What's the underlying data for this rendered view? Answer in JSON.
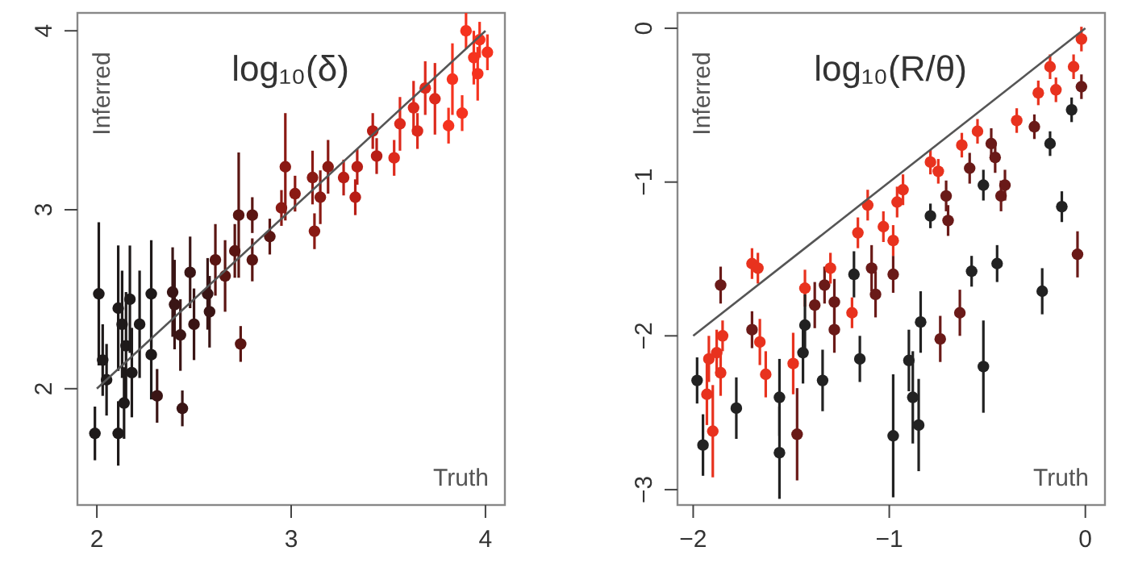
{
  "chart_data": [
    {
      "type": "scatter",
      "title": "log₁₀(δ)",
      "xlabel": "Truth",
      "ylabel": "Inferred",
      "xlim": [
        1.9,
        4.1
      ],
      "ylim": [
        1.35,
        4.1
      ],
      "xticks": [
        2,
        3,
        4
      ],
      "yticks": [
        2,
        3,
        4
      ],
      "series": [
        {
          "marker": "circle",
          "x": [
            1.99,
            2.01,
            2.03,
            2.05,
            2.11,
            2.11,
            2.13,
            2.15,
            2.14,
            2.17,
            2.18,
            2.22,
            2.28,
            2.28,
            2.31,
            2.39,
            2.4,
            2.43,
            2.44,
            2.48,
            2.5,
            2.57,
            2.58,
            2.61,
            2.66,
            2.71,
            2.74,
            2.73,
            2.8,
            2.8,
            2.89,
            2.95,
            2.97,
            3.02,
            3.11,
            3.12,
            3.15,
            3.19,
            3.27,
            3.33,
            3.34,
            3.42,
            3.44,
            3.53,
            3.56,
            3.63,
            3.65,
            3.69,
            3.74,
            3.81,
            3.83,
            3.88,
            3.9,
            3.94,
            3.96,
            4.01,
            3.97
          ],
          "values": [
            1.75,
            2.53,
            2.16,
            2.05,
            1.75,
            2.45,
            2.36,
            2.24,
            1.92,
            2.5,
            2.09,
            2.36,
            2.53,
            2.19,
            1.96,
            2.54,
            2.47,
            2.3,
            1.89,
            2.65,
            2.36,
            2.53,
            2.43,
            2.72,
            2.63,
            2.77,
            2.25,
            2.97,
            2.97,
            2.72,
            2.85,
            3.01,
            3.24,
            3.09,
            3.18,
            2.88,
            3.07,
            3.24,
            3.18,
            3.07,
            3.24,
            3.44,
            3.3,
            3.29,
            3.48,
            3.57,
            3.44,
            3.68,
            3.62,
            3.47,
            3.73,
            3.54,
            4.0,
            3.85,
            3.76,
            3.88,
            3.95
          ],
          "errors": [
            0.15,
            0.4,
            0.2,
            0.2,
            0.18,
            0.35,
            0.3,
            0.3,
            0.2,
            0.3,
            0.25,
            0.3,
            0.3,
            0.25,
            0.15,
            0.25,
            0.25,
            0.2,
            0.1,
            0.2,
            0.2,
            0.2,
            0.2,
            0.2,
            0.2,
            0.15,
            0.1,
            0.35,
            0.1,
            0.12,
            0.1,
            0.1,
            0.3,
            0.1,
            0.15,
            0.1,
            0.15,
            0.15,
            0.1,
            0.1,
            0.1,
            0.1,
            0.1,
            0.1,
            0.15,
            0.15,
            0.1,
            0.15,
            0.2,
            0.1,
            0.2,
            0.1,
            0.1,
            0.15,
            0.15,
            0.1,
            0.1
          ],
          "colors": [
            "#1e1a1a",
            "#1e1a1a",
            "#1e1a1a",
            "#1e1a1a",
            "#1e1a1a",
            "#1e1a1a",
            "#1e1a1a",
            "#1e1a1a",
            "#1e1a1a",
            "#1e1a1a",
            "#1e1a1a",
            "#1e1a1a",
            "#1e1a1a",
            "#1e1a1a",
            "#3a1515",
            "#3a1515",
            "#3a1515",
            "#3a1515",
            "#3a1515",
            "#3a1515",
            "#3a1515",
            "#3a1515",
            "#3a1515",
            "#5a1512",
            "#5a1512",
            "#5a1512",
            "#5a1512",
            "#5a1512",
            "#5a1512",
            "#5a1512",
            "#5a1512",
            "#8a1a14",
            "#8a1a14",
            "#8a1a14",
            "#8a1a14",
            "#8a1a14",
            "#8a1a14",
            "#8a1a14",
            "#b81e16",
            "#b81e16",
            "#b81e16",
            "#b81e16",
            "#b81e16",
            "#dd2a1c",
            "#dd2a1c",
            "#dd2a1c",
            "#dd2a1c",
            "#dd2a1c",
            "#dd2a1c",
            "#f5331f",
            "#f5331f",
            "#f5331f",
            "#f5331f",
            "#f5331f",
            "#f5331f",
            "#f5331f",
            "#f5331f"
          ]
        },
        {
          "type": "line",
          "x": [
            2,
            4
          ],
          "values": [
            2,
            4
          ],
          "color": "#555555",
          "marker": "none"
        }
      ]
    },
    {
      "type": "scatter",
      "title": "log₁₀(R/θ)",
      "xlabel": "Truth",
      "ylabel": "Inferred",
      "xlim": [
        -2.08,
        0.1
      ],
      "ylim": [
        -3.1,
        0.1
      ],
      "xticks": [
        {
          "value": -2,
          "label": "−2"
        },
        {
          "value": -1,
          "label": "−1"
        },
        0
      ],
      "yticks": [
        {
          "value": -3,
          "label": "−3"
        },
        {
          "value": -2,
          "label": "−2"
        },
        {
          "value": -1,
          "label": "−1"
        },
        0
      ],
      "series": [
        {
          "marker": "circle",
          "x": [
            -1.98,
            -1.95,
            -1.93,
            -1.92,
            -1.9,
            -1.88,
            -1.86,
            -1.86,
            -1.85,
            -1.78,
            -1.7,
            -1.67,
            -1.7,
            -1.66,
            -1.63,
            -1.56,
            -1.56,
            -1.49,
            -1.47,
            -1.44,
            -1.43,
            -1.43,
            -1.38,
            -1.34,
            -1.33,
            -1.3,
            -1.28,
            -1.28,
            -1.19,
            -1.18,
            -1.16,
            -1.15,
            -1.11,
            -1.09,
            -1.07,
            -1.03,
            -0.98,
            -0.98,
            -0.98,
            -0.96,
            -0.93,
            -0.9,
            -0.88,
            -0.85,
            -0.84,
            -0.79,
            -0.79,
            -0.75,
            -0.74,
            -0.71,
            -0.7,
            -0.64,
            -0.63,
            -0.59,
            -0.58,
            -0.55,
            -0.52,
            -0.52,
            -0.48,
            -0.46,
            -0.45,
            -0.43,
            -0.41,
            -0.35,
            -0.26,
            -0.24,
            -0.22,
            -0.18,
            -0.18,
            -0.15,
            -0.12,
            -0.07,
            -0.06,
            -0.04,
            -0.02,
            -0.02
          ],
          "values": [
            -2.29,
            -2.71,
            -2.38,
            -2.15,
            -2.62,
            -2.11,
            -2.24,
            -1.67,
            -2.0,
            -2.47,
            -1.53,
            -1.56,
            -1.96,
            -2.04,
            -2.25,
            -2.4,
            -2.76,
            -2.18,
            -2.64,
            -2.11,
            -1.69,
            -1.93,
            -1.8,
            -2.29,
            -1.67,
            -1.56,
            -1.78,
            -1.96,
            -1.85,
            -1.6,
            -1.33,
            -2.15,
            -1.15,
            -1.56,
            -1.73,
            -1.29,
            -1.38,
            -1.6,
            -2.65,
            -1.13,
            -1.05,
            -2.16,
            -2.4,
            -2.58,
            -1.91,
            -1.22,
            -0.87,
            -0.93,
            -2.02,
            -1.09,
            -1.25,
            -1.85,
            -0.76,
            -0.91,
            -1.58,
            -0.67,
            -2.2,
            -1.02,
            -0.75,
            -0.84,
            -1.53,
            -1.09,
            -1.02,
            -0.6,
            -0.64,
            -0.42,
            -1.71,
            -0.25,
            -0.75,
            -0.4,
            -1.16,
            -0.53,
            -0.25,
            -1.47,
            -0.07,
            -0.38
          ],
          "errors": [
            0.15,
            0.2,
            0.2,
            0.15,
            0.3,
            0.15,
            0.15,
            0.12,
            0.1,
            0.2,
            0.1,
            0.1,
            0.12,
            0.15,
            0.15,
            0.25,
            0.3,
            0.2,
            0.3,
            0.2,
            0.12,
            0.2,
            0.15,
            0.2,
            0.12,
            0.1,
            0.15,
            0.15,
            0.1,
            0.15,
            0.1,
            0.15,
            0.1,
            0.15,
            0.15,
            0.1,
            0.1,
            0.12,
            0.4,
            0.1,
            0.1,
            0.2,
            0.3,
            0.3,
            0.2,
            0.08,
            0.08,
            0.08,
            0.15,
            0.1,
            0.1,
            0.15,
            0.08,
            0.1,
            0.1,
            0.08,
            0.3,
            0.1,
            0.1,
            0.1,
            0.12,
            0.1,
            0.1,
            0.08,
            0.08,
            0.08,
            0.15,
            0.08,
            0.08,
            0.08,
            0.1,
            0.08,
            0.08,
            0.15,
            0.08,
            0.08
          ],
          "colors": [
            "#222222",
            "#222222",
            "#e8321e",
            "#e8321e",
            "#e8321e",
            "#e8321e",
            "#e8321e",
            "#6a1a18",
            "#e8321e",
            "#222222",
            "#e8321e",
            "#e8321e",
            "#6a1a18",
            "#e8321e",
            "#e8321e",
            "#222222",
            "#222222",
            "#e8321e",
            "#6a1a18",
            "#222222",
            "#e8321e",
            "#222222",
            "#6a1a18",
            "#222222",
            "#6a1a18",
            "#e8321e",
            "#6a1a18",
            "#6a1a18",
            "#e8321e",
            "#222222",
            "#e8321e",
            "#222222",
            "#e8321e",
            "#6a1a18",
            "#6a1a18",
            "#e8321e",
            "#e8321e",
            "#6a1a18",
            "#222222",
            "#e8321e",
            "#e8321e",
            "#222222",
            "#222222",
            "#222222",
            "#222222",
            "#222222",
            "#e8321e",
            "#e8321e",
            "#6a1a18",
            "#6a1a18",
            "#6a1a18",
            "#6a1a18",
            "#e8321e",
            "#6a1a18",
            "#222222",
            "#e8321e",
            "#222222",
            "#222222",
            "#6a1a18",
            "#6a1a18",
            "#222222",
            "#6a1a18",
            "#6a1a18",
            "#e8321e",
            "#6a1a18",
            "#e8321e",
            "#222222",
            "#e8321e",
            "#222222",
            "#e8321e",
            "#222222",
            "#222222",
            "#e8321e",
            "#6a1a18",
            "#e8321e",
            "#6a1a18"
          ]
        },
        {
          "type": "line",
          "x": [
            -2,
            0
          ],
          "values": [
            -2,
            0
          ],
          "color": "#555555",
          "marker": "none"
        }
      ]
    }
  ]
}
